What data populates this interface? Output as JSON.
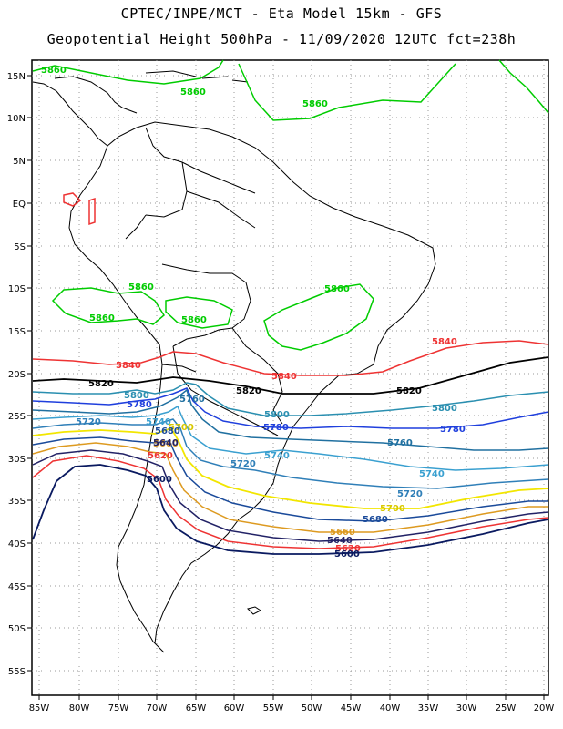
{
  "header": {
    "line1": "CPTEC/INPE/MCT -  Eta Model 15km - GFS",
    "line2": "Geopotential Height 500hPa - 11/09/2020 12UTC fct=238h"
  },
  "axes": {
    "lat_labels": [
      "15N",
      "10N",
      "5N",
      "EQ",
      "5S",
      "10S",
      "15S",
      "20S",
      "25S",
      "30S",
      "35S",
      "40S",
      "45S",
      "50S",
      "55S"
    ],
    "lon_labels": [
      "85W",
      "80W",
      "75W",
      "70W",
      "65W",
      "60W",
      "55W",
      "50W",
      "45W",
      "40W",
      "35W",
      "30W",
      "25W",
      "20W"
    ],
    "lat_range": [
      15,
      -58
    ],
    "lon_range": [
      -86,
      -20
    ]
  },
  "contours": [
    {
      "level": "5860",
      "color": "#00cc00"
    },
    {
      "level": "5840",
      "color": "#ee3333"
    },
    {
      "level": "5820",
      "color": "#000000"
    },
    {
      "level": "5800",
      "color": "#2a8fb0"
    },
    {
      "level": "5780",
      "color": "#1f3fdd"
    },
    {
      "level": "5760",
      "color": "#2070a0"
    },
    {
      "level": "5740",
      "color": "#3aa0d0"
    },
    {
      "level": "5720",
      "color": "#2f7fb8"
    },
    {
      "level": "5700",
      "color": "#f2e600"
    },
    {
      "level": "5680",
      "color": "#1a4a9a"
    },
    {
      "level": "5660",
      "color": "#dd9a20"
    },
    {
      "level": "5640",
      "color": "#222266"
    },
    {
      "level": "5620",
      "color": "#ee3333"
    },
    {
      "level": "5600",
      "color": "#0a1a60"
    }
  ],
  "contour_labels": [
    {
      "text": "5860",
      "color": "#00cc00"
    },
    {
      "text": "5860",
      "color": "#00cc00"
    },
    {
      "text": "5860",
      "color": "#00cc00"
    },
    {
      "text": "5860",
      "color": "#00cc00"
    },
    {
      "text": "5860",
      "color": "#00cc00"
    },
    {
      "text": "5860",
      "color": "#00cc00"
    },
    {
      "text": "5860",
      "color": "#00cc00"
    },
    {
      "text": "5840",
      "color": "#ee3333"
    },
    {
      "text": "5840",
      "color": "#ee3333"
    },
    {
      "text": "5840",
      "color": "#ee3333"
    },
    {
      "text": "5820",
      "color": "#000000"
    },
    {
      "text": "5820",
      "color": "#000000"
    },
    {
      "text": "5820",
      "color": "#000000"
    },
    {
      "text": "5800",
      "color": "#2a8fb0"
    },
    {
      "text": "5800",
      "color": "#2a8fb0"
    },
    {
      "text": "5800",
      "color": "#2a8fb0"
    },
    {
      "text": "5780",
      "color": "#1f3fdd"
    },
    {
      "text": "5780",
      "color": "#1f3fdd"
    },
    {
      "text": "5780",
      "color": "#1f3fdd"
    },
    {
      "text": "5760",
      "color": "#2070a0"
    },
    {
      "text": "5760",
      "color": "#2070a0"
    },
    {
      "text": "5740",
      "color": "#3aa0d0"
    },
    {
      "text": "5740",
      "color": "#3aa0d0"
    },
    {
      "text": "5740",
      "color": "#3aa0d0"
    },
    {
      "text": "5720",
      "color": "#2f7fb8"
    },
    {
      "text": "5720",
      "color": "#2f7fb8"
    },
    {
      "text": "5720",
      "color": "#2f7fb8"
    },
    {
      "text": "5700",
      "color": "#d8c800"
    },
    {
      "text": "5700",
      "color": "#d8c800"
    },
    {
      "text": "5680",
      "color": "#1a4a9a"
    },
    {
      "text": "5680",
      "color": "#1a4a9a"
    },
    {
      "text": "5660",
      "color": "#dd9a20"
    },
    {
      "text": "5660",
      "color": "#dd9a20"
    },
    {
      "text": "5640",
      "color": "#222266"
    },
    {
      "text": "5640",
      "color": "#222266"
    },
    {
      "text": "5620",
      "color": "#ee3333"
    },
    {
      "text": "5620",
      "color": "#ee3333"
    },
    {
      "text": "5600",
      "color": "#0a1a60"
    },
    {
      "text": "5600",
      "color": "#0a1a60"
    }
  ]
}
